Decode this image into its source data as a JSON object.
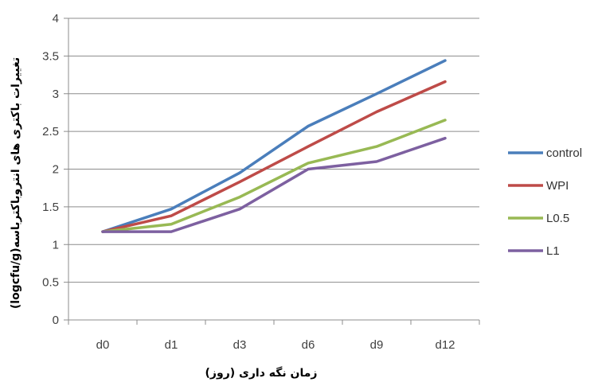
{
  "chart_data": {
    "type": "line",
    "categories": [
      "d0",
      "d1",
      "d3",
      "d6",
      "d9",
      "d12"
    ],
    "series": [
      {
        "name": "control",
        "color": "#4a7ebb",
        "values": [
          1.17,
          1.47,
          1.95,
          2.57,
          3.0,
          3.44
        ]
      },
      {
        "name": "WPI",
        "color": "#be4b48",
        "values": [
          1.17,
          1.38,
          1.83,
          2.3,
          2.76,
          3.16
        ]
      },
      {
        "name": "L0.5",
        "color": "#98b954",
        "values": [
          1.17,
          1.27,
          1.63,
          2.08,
          2.3,
          2.65
        ]
      },
      {
        "name": "L1",
        "color": "#7d60a0",
        "values": [
          1.17,
          1.17,
          1.47,
          2.0,
          2.1,
          2.41
        ]
      }
    ],
    "yticks": [
      "0",
      "0.5",
      "1",
      "1.5",
      "2",
      "2.5",
      "3",
      "3.5",
      "4"
    ],
    "ylim": [
      0,
      4
    ],
    "xlabel": "زمان نگه داری (روز)",
    "ylabel": "تغییرات باکتری های انتروباکترباسه(logcfu/g)",
    "grid": true,
    "legend_position": "right"
  }
}
